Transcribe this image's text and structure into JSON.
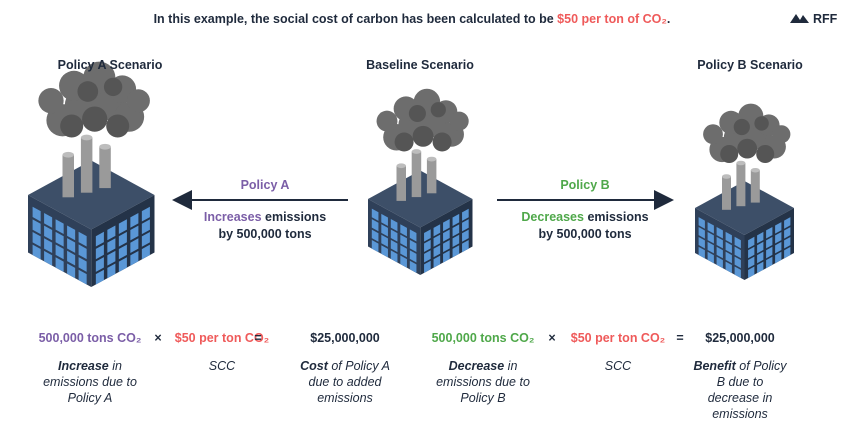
{
  "header": {
    "text_before": "In this example, the social cost of carbon has been calculated to be ",
    "highlight": "$50 per ton of CO₂",
    "text_after": "."
  },
  "logo": "RFF",
  "scenarios": [
    {
      "title": "Policy A Scenario"
    },
    {
      "title": "Baseline Scenario"
    },
    {
      "title": "Policy B Scenario"
    }
  ],
  "arrows": [
    {
      "label": "Policy A",
      "verb": "Increases",
      "rest": " emissions",
      "amount": "by 500,000 tons"
    },
    {
      "label": "Policy B",
      "verb": "Decreases",
      "rest": " emissions",
      "amount": "by 500,000 tons"
    }
  ],
  "equations": [
    {
      "quantity": "500,000 tons CO₂",
      "times": "×",
      "rate": "$50 per ton CO₂",
      "equals": "=",
      "result": "$25,000,000",
      "quantity_caption": {
        "bold": "Increase",
        "rest": " in emissions due to Policy A"
      },
      "rate_caption": "SCC",
      "result_caption": {
        "bold": "Cost",
        "rest": " of Policy A due to added emissions"
      }
    },
    {
      "quantity": "500,000 tons CO₂",
      "times": "×",
      "rate": "$50 per ton CO₂",
      "equals": "=",
      "result": "$25,000,000",
      "quantity_caption": {
        "bold": "Decrease",
        "rest": " in emissions due to Policy B"
      },
      "rate_caption": "SCC",
      "result_caption": {
        "bold": "Benefit",
        "rest": " of Policy B due to decrease in emissions"
      }
    }
  ]
}
